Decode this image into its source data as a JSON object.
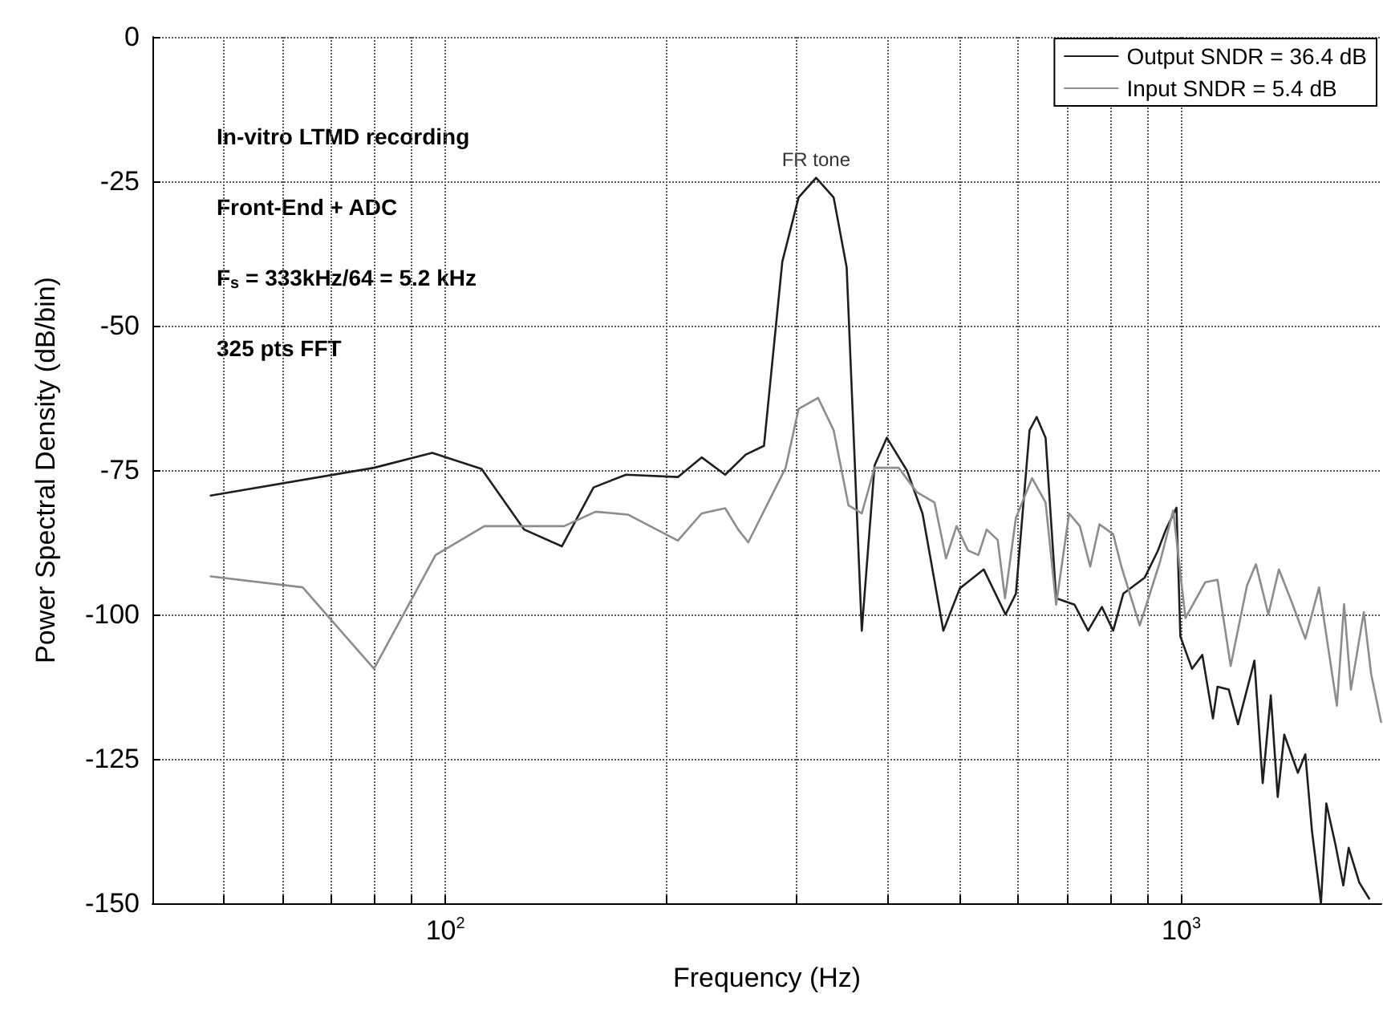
{
  "chart_data": {
    "type": "line",
    "xlabel": "Frequency (Hz)",
    "ylabel": "Power Spectral Density (dB/bin)",
    "annotations": [
      "In-vitro LTMD recording",
      "Front-End + ADC",
      "F$_{s}$ = 333kHz/64 = 5.2 kHz",
      "325 pts FFT",
      {
        "text": "FR tone",
        "x": 319,
        "y": -24
      }
    ],
    "log": "x",
    "grid": true,
    "legend": "top right",
    "line_style": "solid",
    "marker": "none",
    "xlim": [
      40,
      1870
    ],
    "xticks": [
      {
        "value": 50,
        "label": null
      },
      {
        "value": 60,
        "label": null
      },
      {
        "value": 70,
        "label": null
      },
      {
        "value": 80,
        "label": null
      },
      {
        "value": 90,
        "label": null
      },
      {
        "value": 100,
        "label": "10$^{2}$"
      },
      {
        "value": 200,
        "label": null
      },
      {
        "value": 300,
        "label": null
      },
      {
        "value": 400,
        "label": null
      },
      {
        "value": 500,
        "label": null
      },
      {
        "value": 600,
        "label": null
      },
      {
        "value": 700,
        "label": null
      },
      {
        "value": 800,
        "label": null
      },
      {
        "value": 900,
        "label": null
      },
      {
        "value": 1000,
        "label": "10$^{3}$"
      }
    ],
    "ylim": [
      -150,
      0
    ],
    "yticks": [
      -150,
      -125,
      -100,
      -75,
      -50,
      -25,
      0
    ],
    "series": [
      {
        "name": "Output SNDR = 36.4 dB",
        "color": "#1e1e1e",
        "x": [
          48,
          80,
          96,
          112,
          128,
          144,
          159,
          176,
          207,
          223,
          240,
          256,
          271,
          287,
          302,
          319,
          337,
          351,
          368,
          383,
          398,
          424,
          445,
          475,
          500,
          539,
          577,
          596,
          622,
          636,
          654,
          676,
          716,
          747,
          780,
          808,
          834,
          892,
          929,
          953,
          985,
          997,
          1034,
          1068,
          1104,
          1120,
          1160,
          1194,
          1257,
          1290,
          1323,
          1352,
          1380,
          1440,
          1474,
          1505,
          1548,
          1574,
          1620,
          1660,
          1688,
          1745,
          1800
        ],
        "values": [
          -79.4,
          -74.6,
          -72,
          -74.8,
          -85.3,
          -88.2,
          -78,
          -75.8,
          -76.2,
          -72.8,
          -75.8,
          -72.3,
          -70.8,
          -38.9,
          -27.8,
          -24.4,
          -27.8,
          -39.9,
          -102.8,
          -74.2,
          -69.4,
          -75.1,
          -82.5,
          -102.8,
          -95.5,
          -92.2,
          -100,
          -96.4,
          -68.1,
          -65.8,
          -69.4,
          -97.2,
          -98.3,
          -102.8,
          -98.7,
          -102.8,
          -96.4,
          -93.6,
          -89,
          -85.3,
          -81.5,
          -103.8,
          -109.4,
          -107,
          -118,
          -112.5,
          -113,
          -119,
          -108,
          -129.2,
          -114,
          -131.6,
          -120.8,
          -127.4,
          -124.2,
          -137.5,
          -150,
          -132.7,
          -139.9,
          -146.9,
          -140.4,
          -146.4,
          -149.2
        ]
      },
      {
        "name": "Input SNDR = 5.4 dB",
        "color": "#8c8c8c",
        "x": [
          48,
          64,
          80,
          97,
          113,
          145,
          160,
          177,
          207,
          223,
          240,
          250,
          258,
          290,
          302,
          321,
          337,
          353,
          368,
          383,
          413,
          437,
          462,
          479,
          495,
          513,
          530,
          544,
          563,
          576,
          596,
          627,
          654,
          676,
          704,
          728,
          752,
          774,
          808,
          829,
          878,
          936,
          975,
          1013,
          1078,
          1120,
          1167,
          1228,
          1263,
          1313,
          1357,
          1416,
          1474,
          1539,
          1627,
          1664,
          1700,
          1770,
          1811,
          1868
        ],
        "values": [
          -93.4,
          -95.3,
          -109.4,
          -89.7,
          -84.7,
          -84.7,
          -82.2,
          -82.7,
          -87.2,
          -82.5,
          -81.6,
          -85.3,
          -87.5,
          -74.6,
          -64.4,
          -62.5,
          -68.1,
          -81.1,
          -82.5,
          -74.6,
          -74.6,
          -78.8,
          -80.6,
          -90.3,
          -84.7,
          -88.9,
          -89.7,
          -85.3,
          -87.1,
          -97.2,
          -83.3,
          -76.4,
          -80.6,
          -98.3,
          -82.5,
          -84.7,
          -91.7,
          -84.4,
          -86.1,
          -91.7,
          -101.9,
          -90.8,
          -82,
          -100.6,
          -94.4,
          -94,
          -108.9,
          -95,
          -91.3,
          -100,
          -92.2,
          -98.2,
          -104.2,
          -95.3,
          -115.8,
          -98.2,
          -113,
          -99.6,
          -110.3,
          -118.6
        ]
      }
    ]
  }
}
